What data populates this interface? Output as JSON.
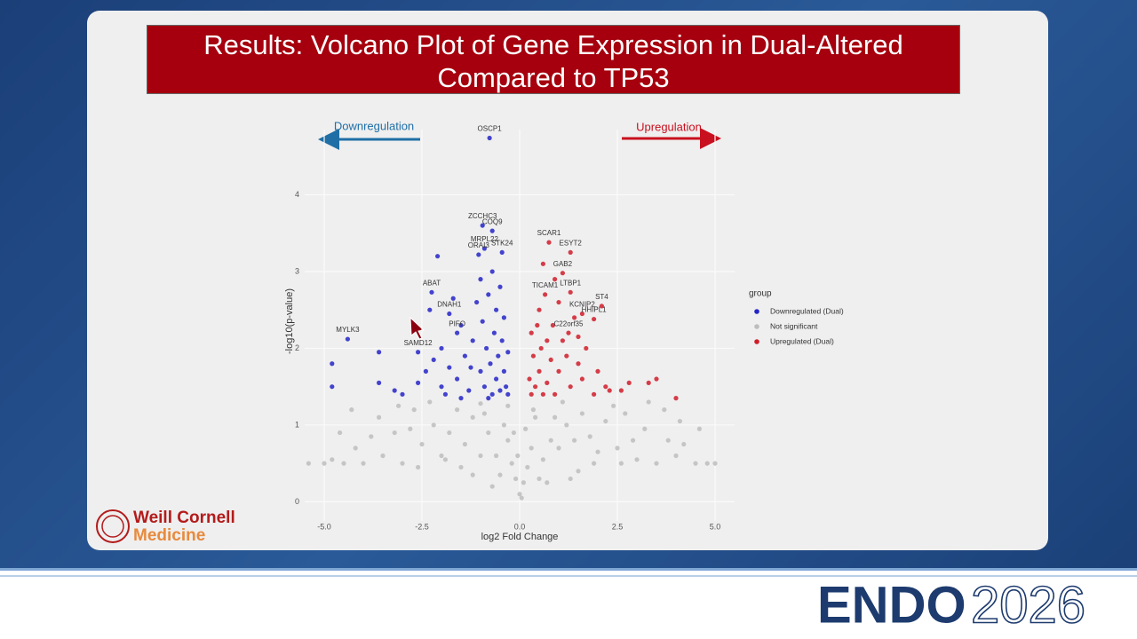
{
  "chart_data": {
    "type": "scatter",
    "title": "Results: Volcano Plot of Gene Expression in Dual-Altered Compared to TP53",
    "annotations": [
      "Downregulation",
      "Upregulation"
    ],
    "x_label": "log2 Fold Change",
    "y_label": "-log10(p-value)",
    "legend_title": "group",
    "legend": "right",
    "grid": true,
    "xlim": [
      -5.5,
      5.5
    ],
    "ylim": [
      -0.25,
      4.85
    ],
    "xticks": [
      {
        "value": -5,
        "label": "-5.0"
      },
      {
        "value": -2.5,
        "label": "-2.5"
      },
      {
        "value": 0,
        "label": "0.0"
      },
      {
        "value": 2.5,
        "label": "2.5"
      },
      {
        "value": 5,
        "label": "5.0"
      }
    ],
    "yticks": [
      0,
      1,
      2,
      3,
      4
    ],
    "series": [
      {
        "name": "Downregulated (Dual)",
        "color": "#2424c8",
        "x": [
          -0.77,
          -0.95,
          -0.7,
          -0.9,
          -1.05,
          -0.45,
          -2.25,
          -1.8,
          -1.6,
          -2.6,
          -4.4,
          -4.8,
          -4.8,
          -3.6,
          -3.6,
          -3.2,
          -3.0,
          -2.6,
          -2.4,
          -2.3,
          -2.2,
          -2.0,
          -2.0,
          -1.8,
          -1.7,
          -1.6,
          -1.5,
          -1.4,
          -1.3,
          -1.2,
          -1.1,
          -1.0,
          -1.0,
          -0.95,
          -0.9,
          -0.85,
          -0.8,
          -0.75,
          -0.7,
          -0.7,
          -0.65,
          -0.6,
          -0.6,
          -0.55,
          -0.5,
          -0.5,
          -0.45,
          -0.4,
          -0.4,
          -0.35,
          -0.3,
          -0.3,
          -2.1,
          -1.25,
          -1.5,
          -0.8,
          -1.9
        ],
        "values": [
          4.74,
          3.6,
          3.53,
          3.3,
          3.22,
          3.25,
          2.73,
          2.45,
          2.2,
          1.95,
          2.12,
          1.8,
          1.5,
          1.95,
          1.55,
          1.45,
          1.4,
          1.55,
          1.7,
          2.5,
          1.85,
          2.0,
          1.5,
          1.75,
          2.65,
          1.6,
          2.3,
          1.9,
          1.45,
          2.1,
          2.6,
          1.7,
          2.9,
          2.35,
          1.5,
          2.0,
          2.7,
          1.8,
          3.0,
          1.4,
          2.2,
          2.5,
          1.6,
          1.9,
          2.8,
          1.45,
          2.1,
          1.7,
          2.4,
          1.5,
          1.95,
          1.4,
          3.2,
          1.75,
          1.35,
          1.35,
          1.4
        ],
        "labels": [
          "OSCP1",
          "ZCCHC3",
          "COQ9",
          "MRPL22",
          "ORAI3",
          "STK24",
          "ABAT",
          "DNAH1",
          "PIFO",
          "SAMD12",
          "MYLK3",
          null,
          null,
          null,
          null,
          null,
          null,
          null,
          null,
          null,
          null,
          null,
          null,
          null,
          null,
          null,
          null,
          null,
          null,
          null,
          null,
          null,
          null,
          null,
          null,
          null,
          null,
          null,
          null,
          null,
          null,
          null,
          null,
          null,
          null,
          null,
          null,
          null,
          null,
          null,
          null,
          null,
          null,
          null,
          null,
          null,
          null
        ]
      },
      {
        "name": "Not significant",
        "color": "#bdbdbd",
        "x": [
          0,
          -0.1,
          0.1,
          -0.2,
          0.2,
          -0.3,
          0.3,
          -0.4,
          0.4,
          -0.3,
          0.35,
          -0.6,
          0.6,
          -0.8,
          0.8,
          -1.0,
          1.0,
          -1.2,
          1.2,
          -1.4,
          1.4,
          -1.6,
          1.6,
          -1.8,
          1.8,
          -2.0,
          2.0,
          -2.2,
          2.2,
          -2.5,
          2.5,
          -2.7,
          2.7,
          -3.0,
          3.0,
          -3.2,
          3.2,
          -3.5,
          3.5,
          -3.8,
          3.8,
          -4.0,
          4.0,
          -4.2,
          4.2,
          -4.5,
          4.5,
          -4.8,
          4.8,
          -5.0,
          5.0,
          -4.3,
          4.1,
          -3.1,
          3.3,
          -2.3,
          2.4,
          -1.0,
          1.1,
          -0.5,
          0.5,
          -0.7,
          0.7,
          -1.5,
          1.5,
          -2.6,
          2.6,
          -0.15,
          0.15,
          -0.9,
          0.9,
          -1.9,
          1.9,
          -3.6,
          3.7,
          -4.6,
          4.6,
          -0.05,
          0.05,
          -2.8,
          2.9,
          -5.4,
          -1.2,
          1.3
        ],
        "values": [
          0.1,
          0.3,
          0.25,
          0.5,
          0.45,
          0.8,
          0.7,
          1.0,
          1.1,
          1.25,
          1.2,
          0.6,
          0.55,
          0.9,
          0.8,
          0.6,
          0.7,
          1.1,
          1.0,
          0.75,
          0.8,
          1.2,
          1.15,
          0.9,
          0.85,
          0.6,
          0.65,
          1.0,
          1.05,
          0.75,
          0.7,
          1.2,
          1.15,
          0.5,
          0.55,
          0.9,
          0.95,
          0.6,
          0.5,
          0.85,
          0.8,
          0.5,
          0.6,
          0.7,
          0.75,
          0.5,
          0.5,
          0.55,
          0.5,
          0.5,
          0.5,
          1.2,
          1.05,
          1.25,
          1.3,
          1.3,
          1.25,
          1.28,
          1.3,
          0.35,
          0.3,
          0.2,
          0.25,
          0.45,
          0.4,
          0.45,
          0.5,
          0.9,
          0.95,
          1.15,
          1.1,
          0.55,
          0.5,
          1.1,
          1.2,
          0.9,
          0.95,
          0.6,
          0.05,
          0.95,
          0.8,
          0.5,
          0.35,
          0.3
        ]
      },
      {
        "name": "Upregulated (Dual)",
        "color": "#d01c2a",
        "x": [
          0.75,
          1.3,
          1.1,
          0.65,
          1.3,
          2.1,
          1.6,
          1.25,
          1.9,
          3.5,
          3.3,
          2.6,
          4.0,
          2.8,
          2.2,
          2.0,
          1.9,
          1.7,
          1.6,
          1.5,
          1.4,
          1.3,
          1.2,
          1.1,
          1.0,
          1.0,
          0.9,
          0.85,
          0.8,
          0.7,
          0.7,
          0.6,
          0.6,
          0.55,
          0.5,
          0.45,
          0.4,
          0.35,
          0.3,
          0.3,
          0.25,
          0.9,
          1.5,
          2.3,
          0.5
        ],
        "values": [
          3.38,
          3.25,
          2.98,
          2.7,
          2.73,
          2.55,
          2.45,
          2.2,
          2.38,
          1.6,
          1.55,
          1.45,
          1.35,
          1.55,
          1.5,
          1.7,
          1.4,
          2.0,
          1.6,
          1.8,
          2.4,
          1.5,
          1.9,
          2.1,
          1.7,
          2.6,
          1.4,
          2.3,
          1.85,
          1.55,
          2.1,
          3.1,
          1.4,
          2.0,
          1.7,
          2.3,
          1.5,
          1.9,
          1.4,
          2.2,
          1.6,
          2.9,
          2.15,
          1.45,
          2.5
        ],
        "labels": [
          "SCAR1",
          "ESYT2",
          "GAB2",
          "TICAM1",
          "LTBP1",
          "ST4",
          "KCNIP2",
          "C22orf35",
          "HHIPL1",
          null,
          null,
          null,
          null,
          null,
          null,
          null,
          null,
          null,
          null,
          null,
          null,
          null,
          null,
          null,
          null,
          null,
          null,
          null,
          null,
          null,
          null,
          null,
          null,
          null,
          null,
          null,
          null,
          null,
          null,
          null,
          null,
          null,
          null,
          null,
          null
        ]
      }
    ]
  },
  "slide": {
    "logo_line1": "Weill Cornell",
    "logo_line2": "Medicine",
    "footer_bold": "ENDO",
    "footer_light": "2026"
  }
}
